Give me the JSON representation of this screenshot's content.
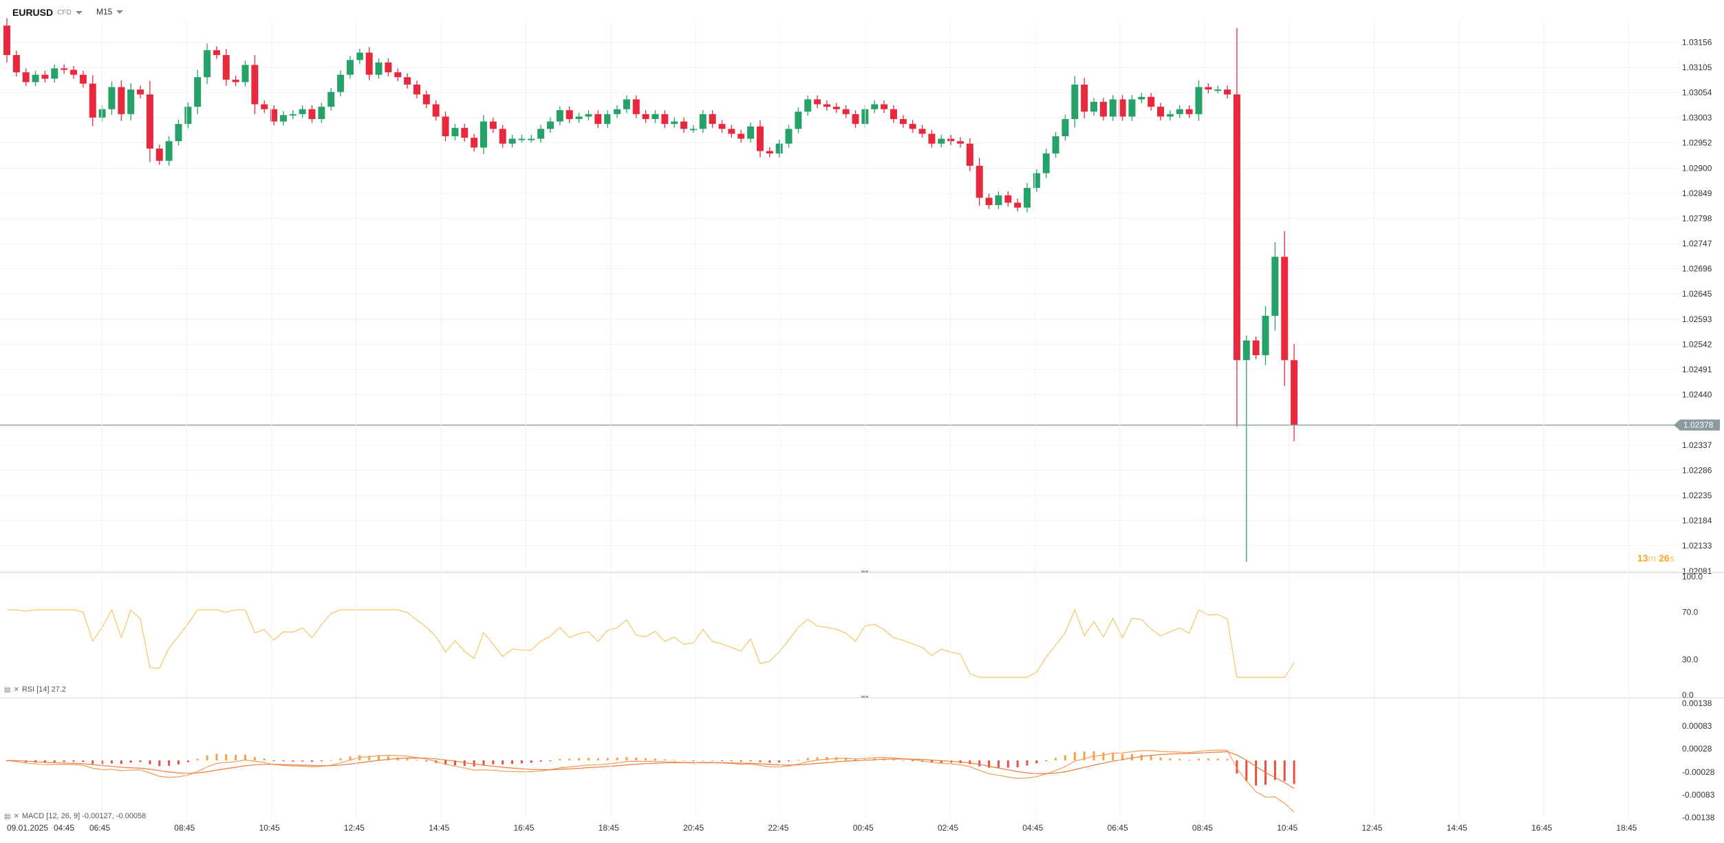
{
  "header": {
    "symbol": "EURUSD",
    "symbol_sub": "CFD",
    "timeframe": "M15"
  },
  "colors": {
    "up": "#26a269",
    "down": "#e8283c",
    "price_line": "#8a9aa0",
    "rsi": "#f5c96a",
    "macd_line": "#f49b55",
    "signal_line": "#f07a3a",
    "hist_pos": "#f6a14a",
    "hist_neg": "#e6503c",
    "timer": "#f5a623",
    "grid": "#f0f0f0"
  },
  "countdown": {
    "minutes": "13",
    "m": "m",
    "seconds": "26",
    "s": "s"
  },
  "rsi_panel": {
    "label": "RSI [14] 27.2",
    "ticks": [
      "100.0",
      "70.0",
      "30.0",
      "0.0"
    ]
  },
  "macd_panel": {
    "label": "MACD [12, 26, 9] -0.00127, -0.00058",
    "ticks": [
      "0.00138",
      "0.00083",
      "0.00028",
      "-0.00028",
      "-0.00083",
      "-0.00138"
    ]
  },
  "current_price": "1.02378",
  "chart_data": {
    "type": "candlestick",
    "symbol": "EURUSD",
    "timeframe": "M15",
    "price_ticks": [
      "1.03156",
      "1.03105",
      "1.03054",
      "1.03003",
      "1.02952",
      "1.02900",
      "1.02849",
      "1.02798",
      "1.02747",
      "1.02696",
      "1.02645",
      "1.02593",
      "1.02542",
      "1.02491",
      "1.02440",
      "1.02337",
      "1.02286",
      "1.02235",
      "1.02184",
      "1.02133",
      "1.02081"
    ],
    "time_ticks": [
      "09.01.2025",
      "04:45",
      "06:45",
      "08:45",
      "10:45",
      "12:45",
      "14:45",
      "16:45",
      "18:45",
      "20:45",
      "22:45",
      "00:45",
      "02:45",
      "04:45",
      "06:45",
      "08:45",
      "10:45",
      "12:45",
      "14:45",
      "16:45",
      "18:45"
    ],
    "price_range": [
      1.02081,
      1.032
    ],
    "current_price": 1.02378,
    "closes": [
      1.0313,
      1.03095,
      1.03075,
      1.0309,
      1.03082,
      1.03103,
      1.031,
      1.0309,
      1.03072,
      1.03003,
      1.0302,
      1.03065,
      1.0301,
      1.0306,
      1.0305,
      1.0294,
      1.02915,
      1.02955,
      1.0299,
      1.03025,
      1.03085,
      1.0314,
      1.0313,
      1.0308,
      1.03075,
      1.0311,
      1.0303,
      1.0302,
      1.02995,
      1.03008,
      1.0301,
      1.0302,
      1.03,
      1.03025,
      1.03055,
      1.0309,
      1.0312,
      1.03135,
      1.0309,
      1.03115,
      1.03095,
      1.03085,
      1.0307,
      1.0305,
      1.0303,
      1.03005,
      1.02965,
      1.02982,
      1.02962,
      1.02942,
      1.02995,
      1.0298,
      1.0295,
      1.0296,
      1.0296,
      1.0296,
      1.0298,
      1.02995,
      1.03018,
      1.03,
      1.03005,
      1.0301,
      1.0299,
      1.0301,
      1.0302,
      1.0304,
      1.0301,
      1.03,
      1.0301,
      1.0299,
      1.02995,
      1.0298,
      1.0298,
      1.0301,
      1.0299,
      1.0298,
      1.0297,
      1.0296,
      1.02985,
      1.02935,
      1.0293,
      1.0295,
      1.0298,
      1.03015,
      1.0304,
      1.0303,
      1.03025,
      1.0302,
      1.0301,
      1.0299,
      1.0302,
      1.0303,
      1.0302,
      1.03,
      1.0299,
      1.0298,
      1.0297,
      1.0295,
      1.0296,
      1.02955,
      1.0295,
      1.02905,
      1.0284,
      1.02825,
      1.02845,
      1.0283,
      1.0282,
      1.0286,
      1.0289,
      1.0293,
      1.02965,
      1.03,
      1.0307,
      1.03015,
      1.03035,
      1.03005,
      1.0304,
      1.03005,
      1.0304,
      1.03045,
      1.03025,
      1.03005,
      1.0301,
      1.0302,
      1.0301,
      1.03065,
      1.0306,
      1.0306,
      1.0305,
      1.0251,
      1.0255,
      1.0252,
      1.026,
      1.0272,
      1.0251,
      1.02378
    ],
    "rsi": {
      "period": 14,
      "value": 27.2,
      "ylim": [
        0,
        100
      ]
    },
    "macd": {
      "fast": 12,
      "slow": 26,
      "signal": 9,
      "macd": -0.00127,
      "signal_value": -0.00058,
      "ylim": [
        -0.00138,
        0.00138
      ]
    }
  }
}
